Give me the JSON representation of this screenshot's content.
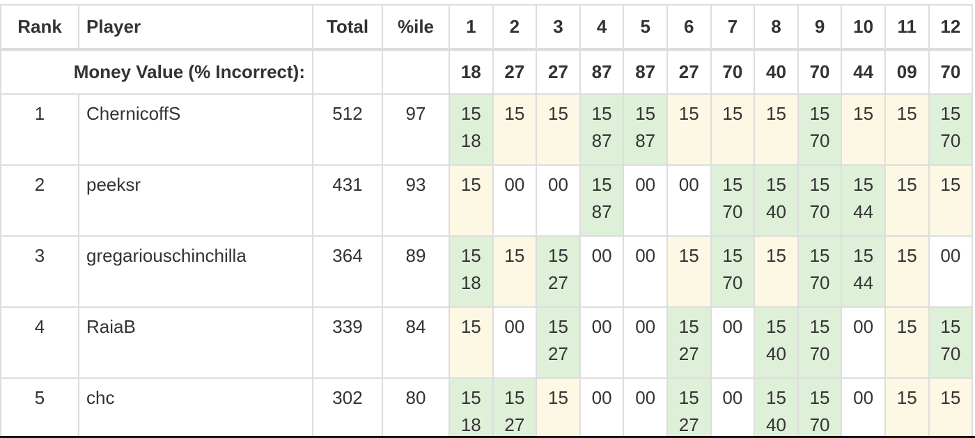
{
  "table": {
    "headers": {
      "rank": "Rank",
      "player": "Player",
      "total": "Total",
      "pct": "%ile",
      "questions": [
        "1",
        "2",
        "3",
        "4",
        "5",
        "6",
        "7",
        "8",
        "9",
        "10",
        "11",
        "12"
      ]
    },
    "money_row": {
      "label": "Money Value (% Incorrect):",
      "values": [
        "18",
        "27",
        "27",
        "87",
        "87",
        "27",
        "70",
        "40",
        "70",
        "44",
        "09",
        "70"
      ]
    },
    "legend_colors": {
      "yellow": "#fcf8e3",
      "green": "#dff0d8",
      "white": "#ffffff"
    },
    "rows": [
      {
        "rank": "1",
        "player": "ChernicoffS",
        "total": "512",
        "pct": "97",
        "cells": [
          {
            "color": "green",
            "lines": [
              "15",
              "18"
            ]
          },
          {
            "color": "yellow",
            "lines": [
              "15"
            ]
          },
          {
            "color": "yellow",
            "lines": [
              "15"
            ]
          },
          {
            "color": "green",
            "lines": [
              "15",
              "87"
            ]
          },
          {
            "color": "green",
            "lines": [
              "15",
              "87"
            ]
          },
          {
            "color": "yellow",
            "lines": [
              "15"
            ]
          },
          {
            "color": "yellow",
            "lines": [
              "15"
            ]
          },
          {
            "color": "yellow",
            "lines": [
              "15"
            ]
          },
          {
            "color": "green",
            "lines": [
              "15",
              "70"
            ]
          },
          {
            "color": "yellow",
            "lines": [
              "15"
            ]
          },
          {
            "color": "yellow",
            "lines": [
              "15"
            ]
          },
          {
            "color": "green",
            "lines": [
              "15",
              "70"
            ]
          }
        ]
      },
      {
        "rank": "2",
        "player": "peeksr",
        "total": "431",
        "pct": "93",
        "cells": [
          {
            "color": "yellow",
            "lines": [
              "15"
            ]
          },
          {
            "color": "white",
            "lines": [
              "00"
            ]
          },
          {
            "color": "white",
            "lines": [
              "00"
            ]
          },
          {
            "color": "green",
            "lines": [
              "15",
              "87"
            ]
          },
          {
            "color": "white",
            "lines": [
              "00"
            ]
          },
          {
            "color": "white",
            "lines": [
              "00"
            ]
          },
          {
            "color": "green",
            "lines": [
              "15",
              "70"
            ]
          },
          {
            "color": "green",
            "lines": [
              "15",
              "40"
            ]
          },
          {
            "color": "green",
            "lines": [
              "15",
              "70"
            ]
          },
          {
            "color": "green",
            "lines": [
              "15",
              "44"
            ]
          },
          {
            "color": "yellow",
            "lines": [
              "15"
            ]
          },
          {
            "color": "yellow",
            "lines": [
              "15"
            ]
          }
        ]
      },
      {
        "rank": "3",
        "player": "gregariouschinchilla",
        "total": "364",
        "pct": "89",
        "cells": [
          {
            "color": "green",
            "lines": [
              "15",
              "18"
            ]
          },
          {
            "color": "yellow",
            "lines": [
              "15"
            ]
          },
          {
            "color": "green",
            "lines": [
              "15",
              "27"
            ]
          },
          {
            "color": "white",
            "lines": [
              "00"
            ]
          },
          {
            "color": "white",
            "lines": [
              "00"
            ]
          },
          {
            "color": "yellow",
            "lines": [
              "15"
            ]
          },
          {
            "color": "green",
            "lines": [
              "15",
              "70"
            ]
          },
          {
            "color": "yellow",
            "lines": [
              "15"
            ]
          },
          {
            "color": "green",
            "lines": [
              "15",
              "70"
            ]
          },
          {
            "color": "green",
            "lines": [
              "15",
              "44"
            ]
          },
          {
            "color": "yellow",
            "lines": [
              "15"
            ]
          },
          {
            "color": "white",
            "lines": [
              "00"
            ]
          }
        ]
      },
      {
        "rank": "4",
        "player": "RaiaB",
        "total": "339",
        "pct": "84",
        "cells": [
          {
            "color": "yellow",
            "lines": [
              "15"
            ]
          },
          {
            "color": "white",
            "lines": [
              "00"
            ]
          },
          {
            "color": "green",
            "lines": [
              "15",
              "27"
            ]
          },
          {
            "color": "white",
            "lines": [
              "00"
            ]
          },
          {
            "color": "white",
            "lines": [
              "00"
            ]
          },
          {
            "color": "green",
            "lines": [
              "15",
              "27"
            ]
          },
          {
            "color": "white",
            "lines": [
              "00"
            ]
          },
          {
            "color": "green",
            "lines": [
              "15",
              "40"
            ]
          },
          {
            "color": "green",
            "lines": [
              "15",
              "70"
            ]
          },
          {
            "color": "white",
            "lines": [
              "00"
            ]
          },
          {
            "color": "yellow",
            "lines": [
              "15"
            ]
          },
          {
            "color": "green",
            "lines": [
              "15",
              "70"
            ]
          }
        ]
      },
      {
        "rank": "5",
        "player": "chc",
        "total": "302",
        "pct": "80",
        "cells": [
          {
            "color": "green",
            "lines": [
              "15",
              "18"
            ]
          },
          {
            "color": "green",
            "lines": [
              "15",
              "27"
            ]
          },
          {
            "color": "yellow",
            "lines": [
              "15"
            ]
          },
          {
            "color": "white",
            "lines": [
              "00"
            ]
          },
          {
            "color": "white",
            "lines": [
              "00"
            ]
          },
          {
            "color": "green",
            "lines": [
              "15",
              "27"
            ]
          },
          {
            "color": "white",
            "lines": [
              "00"
            ]
          },
          {
            "color": "green",
            "lines": [
              "15",
              "40"
            ]
          },
          {
            "color": "green",
            "lines": [
              "15",
              "70"
            ]
          },
          {
            "color": "white",
            "lines": [
              "00"
            ]
          },
          {
            "color": "yellow",
            "lines": [
              "15"
            ]
          },
          {
            "color": "yellow",
            "lines": [
              "15"
            ]
          }
        ]
      }
    ]
  }
}
